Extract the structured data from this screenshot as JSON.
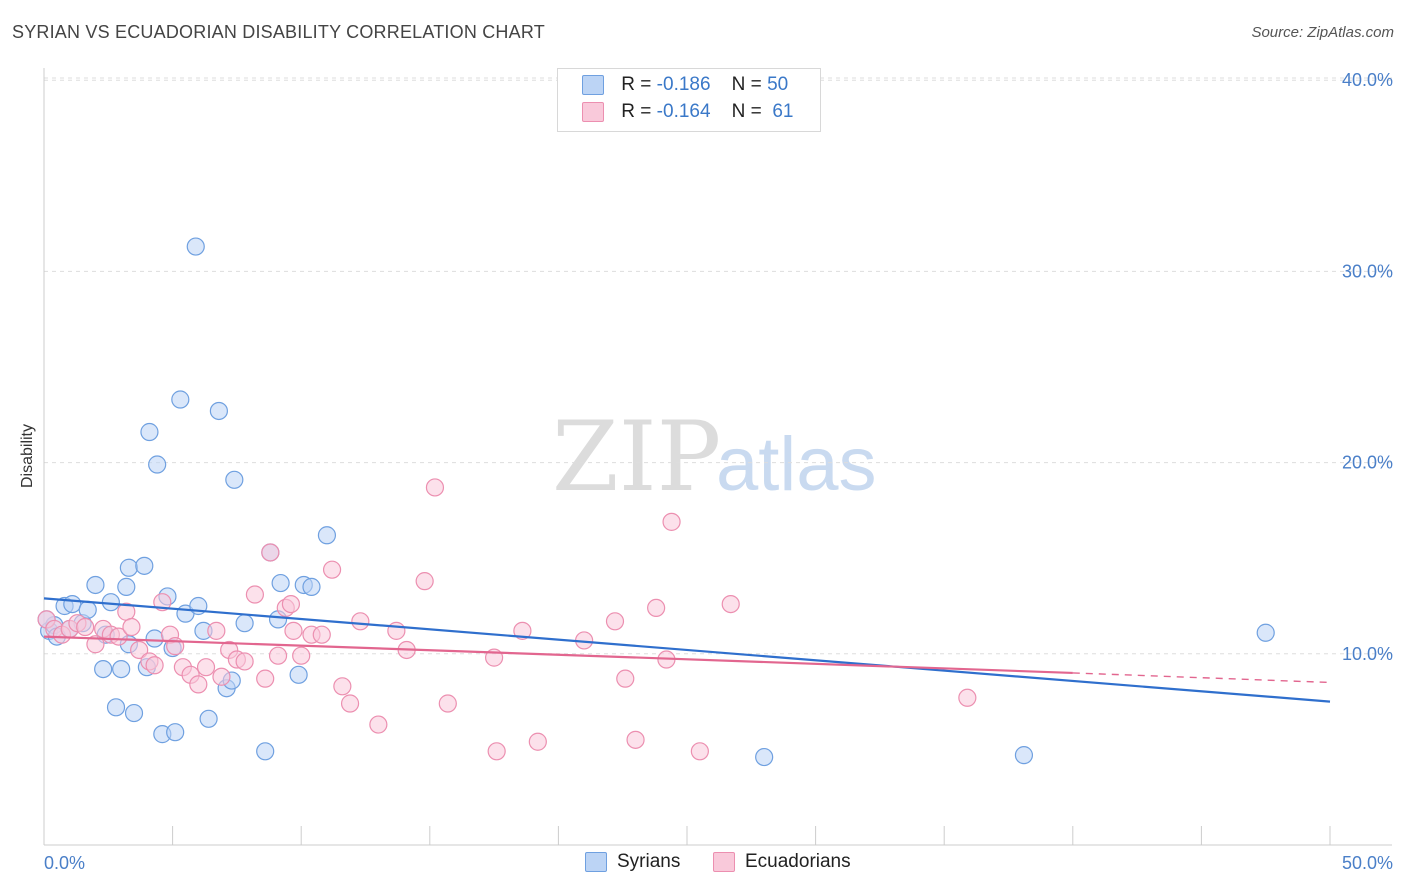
{
  "title": "SYRIAN VS ECUADORIAN DISABILITY CORRELATION CHART",
  "source": "Source: ZipAtlas.com",
  "watermark": {
    "zip": "ZIP",
    "atlas": "atlas"
  },
  "legend": {
    "r_label": "R =",
    "n_label": "N =",
    "rows": [
      {
        "r": "-0.186",
        "n": "50",
        "color": "#6fa0e0",
        "fill": "#bcd4f5"
      },
      {
        "r": "-0.164",
        "n": "61",
        "color": "#ec8fb0",
        "fill": "#f9c9da"
      }
    ]
  },
  "chart_data": {
    "type": "scatter",
    "title": "SYRIAN VS ECUADORIAN DISABILITY CORRELATION CHART",
    "xlabel": "",
    "ylabel": "Disability",
    "xlim": [
      0,
      50
    ],
    "ylim": [
      0,
      42
    ],
    "y_ticks": [
      10,
      20,
      30,
      40
    ],
    "y_tick_labels": [
      "10.0%",
      "20.0%",
      "30.0%",
      "40.0%"
    ],
    "x_tick_labels": [
      "0.0%",
      "50.0%"
    ],
    "grid": "horizontal dashed",
    "legend_position": "bottom-center",
    "series": [
      {
        "name": "Syrians",
        "color": "#6fa0e0",
        "fill": "#bcd4f5",
        "trend": {
          "x": [
            0,
            50
          ],
          "y": [
            12.9,
            7.5
          ]
        },
        "points": [
          [
            0.2,
            11.2
          ],
          [
            0.4,
            11.5
          ],
          [
            0.5,
            10.9
          ],
          [
            0.8,
            12.5
          ],
          [
            1.1,
            12.6
          ],
          [
            1.5,
            11.6
          ],
          [
            1.7,
            12.3
          ],
          [
            2.0,
            13.6
          ],
          [
            2.3,
            9.2
          ],
          [
            2.6,
            12.7
          ],
          [
            2.8,
            7.2
          ],
          [
            3.0,
            9.2
          ],
          [
            3.2,
            13.5
          ],
          [
            3.3,
            10.5
          ],
          [
            3.3,
            14.5
          ],
          [
            3.5,
            6.9
          ],
          [
            3.9,
            14.6
          ],
          [
            4.0,
            9.3
          ],
          [
            4.1,
            21.6
          ],
          [
            4.3,
            10.8
          ],
          [
            4.4,
            19.9
          ],
          [
            4.6,
            5.8
          ],
          [
            4.8,
            13.0
          ],
          [
            5.1,
            5.9
          ],
          [
            5.3,
            23.3
          ],
          [
            5.5,
            12.1
          ],
          [
            5.9,
            31.3
          ],
          [
            6.0,
            12.5
          ],
          [
            6.2,
            11.2
          ],
          [
            6.4,
            6.6
          ],
          [
            6.8,
            22.7
          ],
          [
            7.1,
            8.2
          ],
          [
            7.3,
            8.6
          ],
          [
            7.4,
            19.1
          ],
          [
            7.8,
            11.6
          ],
          [
            8.6,
            4.9
          ],
          [
            8.8,
            15.3
          ],
          [
            9.1,
            11.8
          ],
          [
            9.2,
            13.7
          ],
          [
            9.9,
            8.9
          ],
          [
            10.1,
            13.6
          ],
          [
            10.4,
            13.5
          ],
          [
            11.0,
            16.2
          ],
          [
            28.0,
            4.6
          ],
          [
            38.1,
            4.7
          ],
          [
            47.5,
            11.1
          ],
          [
            0.1,
            11.8
          ],
          [
            1.0,
            11.3
          ],
          [
            2.4,
            11.0
          ],
          [
            5.0,
            10.3
          ]
        ]
      },
      {
        "name": "Ecuadorians",
        "color": "#ec8fb0",
        "fill": "#f9c9da",
        "trend": {
          "x": [
            0,
            40
          ],
          "y": [
            10.9,
            9.0
          ]
        },
        "trend_dashed": {
          "x": [
            40,
            50
          ],
          "y": [
            9.0,
            8.5
          ]
        },
        "points": [
          [
            0.1,
            11.8
          ],
          [
            0.4,
            11.3
          ],
          [
            0.7,
            11.0
          ],
          [
            1.0,
            11.3
          ],
          [
            1.3,
            11.6
          ],
          [
            1.6,
            11.4
          ],
          [
            2.0,
            10.5
          ],
          [
            2.3,
            11.3
          ],
          [
            2.6,
            11.0
          ],
          [
            2.9,
            10.9
          ],
          [
            3.2,
            12.2
          ],
          [
            3.4,
            11.4
          ],
          [
            3.7,
            10.2
          ],
          [
            4.1,
            9.6
          ],
          [
            4.3,
            9.4
          ],
          [
            4.6,
            12.7
          ],
          [
            4.9,
            11.0
          ],
          [
            5.1,
            10.4
          ],
          [
            5.4,
            9.3
          ],
          [
            5.7,
            8.9
          ],
          [
            6.0,
            8.4
          ],
          [
            6.3,
            9.3
          ],
          [
            6.7,
            11.2
          ],
          [
            6.9,
            8.8
          ],
          [
            7.2,
            10.2
          ],
          [
            7.5,
            9.7
          ],
          [
            7.8,
            9.6
          ],
          [
            8.2,
            13.1
          ],
          [
            8.6,
            8.7
          ],
          [
            8.8,
            15.3
          ],
          [
            9.1,
            9.9
          ],
          [
            9.4,
            12.4
          ],
          [
            9.7,
            11.2
          ],
          [
            10.0,
            9.9
          ],
          [
            10.4,
            11.0
          ],
          [
            10.8,
            11.0
          ],
          [
            11.2,
            14.4
          ],
          [
            11.6,
            8.3
          ],
          [
            11.9,
            7.4
          ],
          [
            12.3,
            11.7
          ],
          [
            13.0,
            6.3
          ],
          [
            13.7,
            11.2
          ],
          [
            14.1,
            10.2
          ],
          [
            14.8,
            13.8
          ],
          [
            15.2,
            18.7
          ],
          [
            15.7,
            7.4
          ],
          [
            17.5,
            9.8
          ],
          [
            17.6,
            4.9
          ],
          [
            18.6,
            11.2
          ],
          [
            19.2,
            5.4
          ],
          [
            21.0,
            10.7
          ],
          [
            22.2,
            11.7
          ],
          [
            22.6,
            8.7
          ],
          [
            23.0,
            5.5
          ],
          [
            23.8,
            12.4
          ],
          [
            24.2,
            9.7
          ],
          [
            24.4,
            16.9
          ],
          [
            25.5,
            4.9
          ],
          [
            26.7,
            12.6
          ],
          [
            35.9,
            7.7
          ],
          [
            9.6,
            12.6
          ]
        ]
      }
    ]
  },
  "bottom_legend": [
    {
      "label": "Syrians",
      "color": "#6fa0e0",
      "fill": "#bcd4f5"
    },
    {
      "label": "Ecuadorians",
      "color": "#ec8fb0",
      "fill": "#f9c9da"
    }
  ]
}
